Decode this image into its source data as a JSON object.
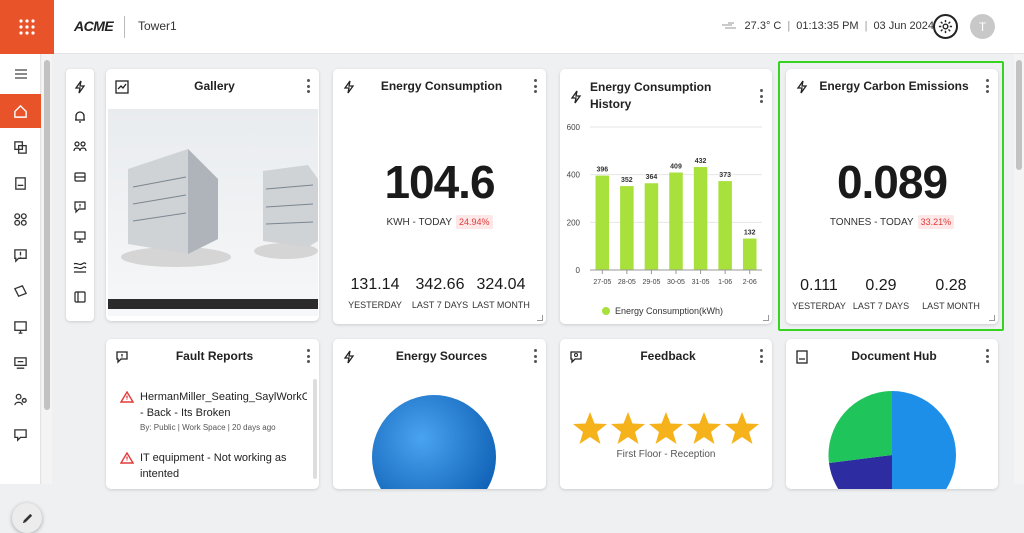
{
  "header": {
    "brand": "ACME",
    "building": "Tower1",
    "temperature": "27.3° C",
    "time": "01:13:35 PM",
    "date": "03 Jun 2024",
    "avatar_initial": "T",
    "accent_color": "#e8532a"
  },
  "nav": {
    "items": [
      {
        "icon": "menu-icon"
      },
      {
        "icon": "home-icon",
        "active": true
      },
      {
        "icon": "assets-icon"
      },
      {
        "icon": "document-icon"
      },
      {
        "icon": "modules-icon"
      },
      {
        "icon": "fault-icon"
      },
      {
        "icon": "ticket-icon"
      },
      {
        "icon": "monitor-icon"
      },
      {
        "icon": "kiosk-icon"
      },
      {
        "icon": "users-icon"
      },
      {
        "icon": "feedback-icon"
      }
    ]
  },
  "widget_tools": [
    "energy-icon",
    "bell-icon",
    "people-icon",
    "vehicle-icon",
    "alert-message-icon",
    "kiosk-icon",
    "hvac-icon",
    "book-icon"
  ],
  "cards": {
    "gallery": {
      "title": "Gallery"
    },
    "energy_consumption": {
      "title": "Energy Consumption",
      "value": "104.6",
      "unit_label": "KWH - TODAY",
      "change": "24.94%",
      "stats": [
        {
          "value": "131.14",
          "label": "YESTERDAY"
        },
        {
          "value": "342.66",
          "label": "LAST 7 DAYS"
        },
        {
          "value": "324.04",
          "label": "LAST MONTH"
        }
      ]
    },
    "energy_history": {
      "title": "Energy Consumption History"
    },
    "carbon": {
      "title": "Energy Carbon Emissions",
      "value": "0.089",
      "unit_label": "TONNES - TODAY",
      "change": "33.21%",
      "stats": [
        {
          "value": "0.111",
          "label": "YESTERDAY"
        },
        {
          "value": "0.29",
          "label": "LAST 7 DAYS"
        },
        {
          "value": "0.28",
          "label": "LAST MONTH"
        }
      ]
    },
    "fault_reports": {
      "title": "Fault Reports",
      "items": [
        {
          "title": "HermanMiller_Seating_SaylWorkChair - Back - Its Broken",
          "meta": "By: Public | Work Space | 20 days ago"
        },
        {
          "title": "IT equipment - Not working as intented",
          "meta": ""
        }
      ]
    },
    "energy_sources": {
      "title": "Energy Sources"
    },
    "feedback": {
      "title": "Feedback",
      "location": "First Floor - Reception",
      "stars": 5
    },
    "document_hub": {
      "title": "Document Hub"
    }
  },
  "chart_data": {
    "type": "bar",
    "categories": [
      "27-05",
      "28-05",
      "29-05",
      "30-05",
      "31-05",
      "1-06",
      "2-06"
    ],
    "series": [
      {
        "name": "Energy Consumption(kWh)",
        "values": [
          396,
          352,
          364,
          409,
          432,
          373,
          132
        ]
      }
    ],
    "ylim": [
      0,
      600
    ],
    "yticks": [
      0,
      200,
      400,
      600
    ],
    "legend": "bottom",
    "color": "#a8e03c"
  }
}
